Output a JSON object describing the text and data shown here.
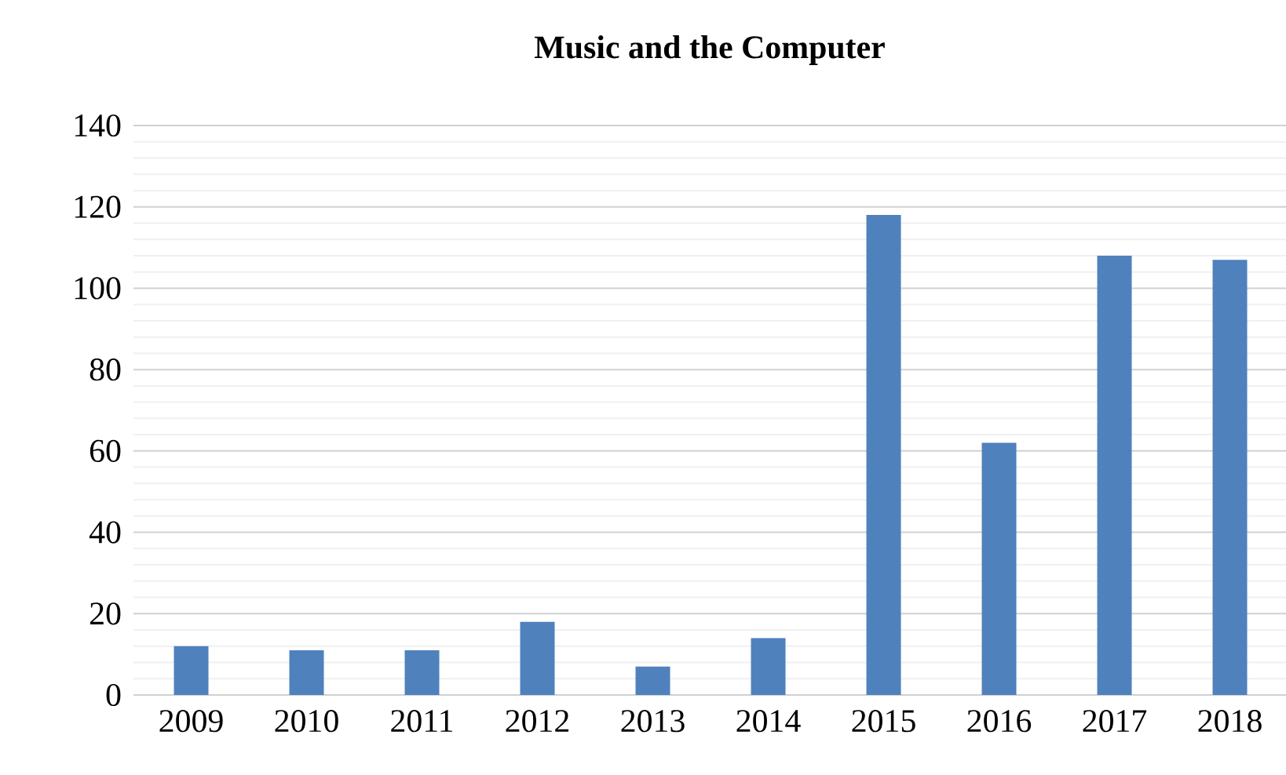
{
  "chart_data": {
    "type": "bar",
    "title": "Music and the Computer",
    "categories": [
      "2009",
      "2010",
      "2011",
      "2012",
      "2013",
      "2014",
      "2015",
      "2016",
      "2017",
      "2018"
    ],
    "values": [
      12,
      11,
      11,
      18,
      7,
      14,
      118,
      62,
      108,
      107
    ],
    "color": "#4f81bd",
    "ylim": [
      0,
      140
    ],
    "yticks": [
      0,
      20,
      40,
      60,
      80,
      100,
      120,
      140
    ],
    "grid": "y"
  }
}
